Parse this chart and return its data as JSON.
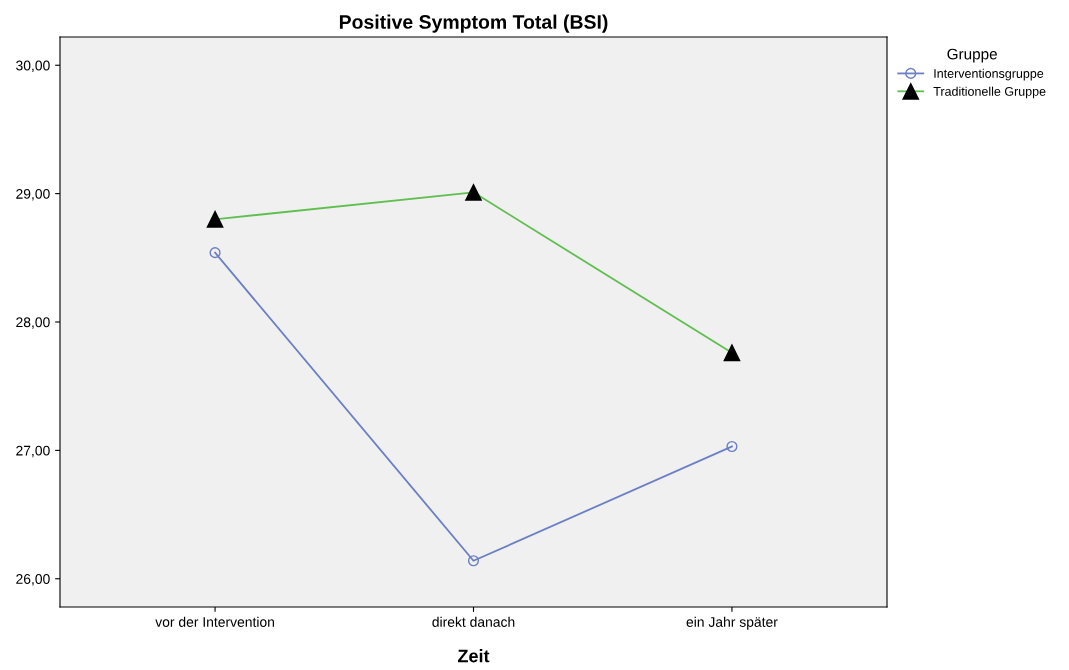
{
  "chart_data": {
    "type": "line",
    "title": "Positive Symptom Total (BSI)",
    "xlabel": "Zeit",
    "legend_title": "Gruppe",
    "legend": "top right",
    "categories": [
      "vor der Intervention",
      "direkt danach",
      "ein Jahr später"
    ],
    "series": [
      {
        "name": "Interventionsgruppe",
        "color": "#6b7fc4",
        "marker": "circle",
        "values": [
          28.54,
          26.14,
          27.03
        ]
      },
      {
        "name": "Traditionelle Gruppe",
        "color": "#5fbf4f",
        "marker": "triangle",
        "values": [
          28.8,
          29.01,
          27.76
        ]
      }
    ],
    "ylim": [
      25.78,
      30.22
    ],
    "yticks": [
      {
        "value": 26,
        "label": "26,00"
      },
      {
        "value": 27,
        "label": "27,00"
      },
      {
        "value": 28,
        "label": "28,00"
      },
      {
        "value": 29,
        "label": "29,00"
      },
      {
        "value": 30,
        "label": "30,00"
      }
    ],
    "grid": false
  }
}
